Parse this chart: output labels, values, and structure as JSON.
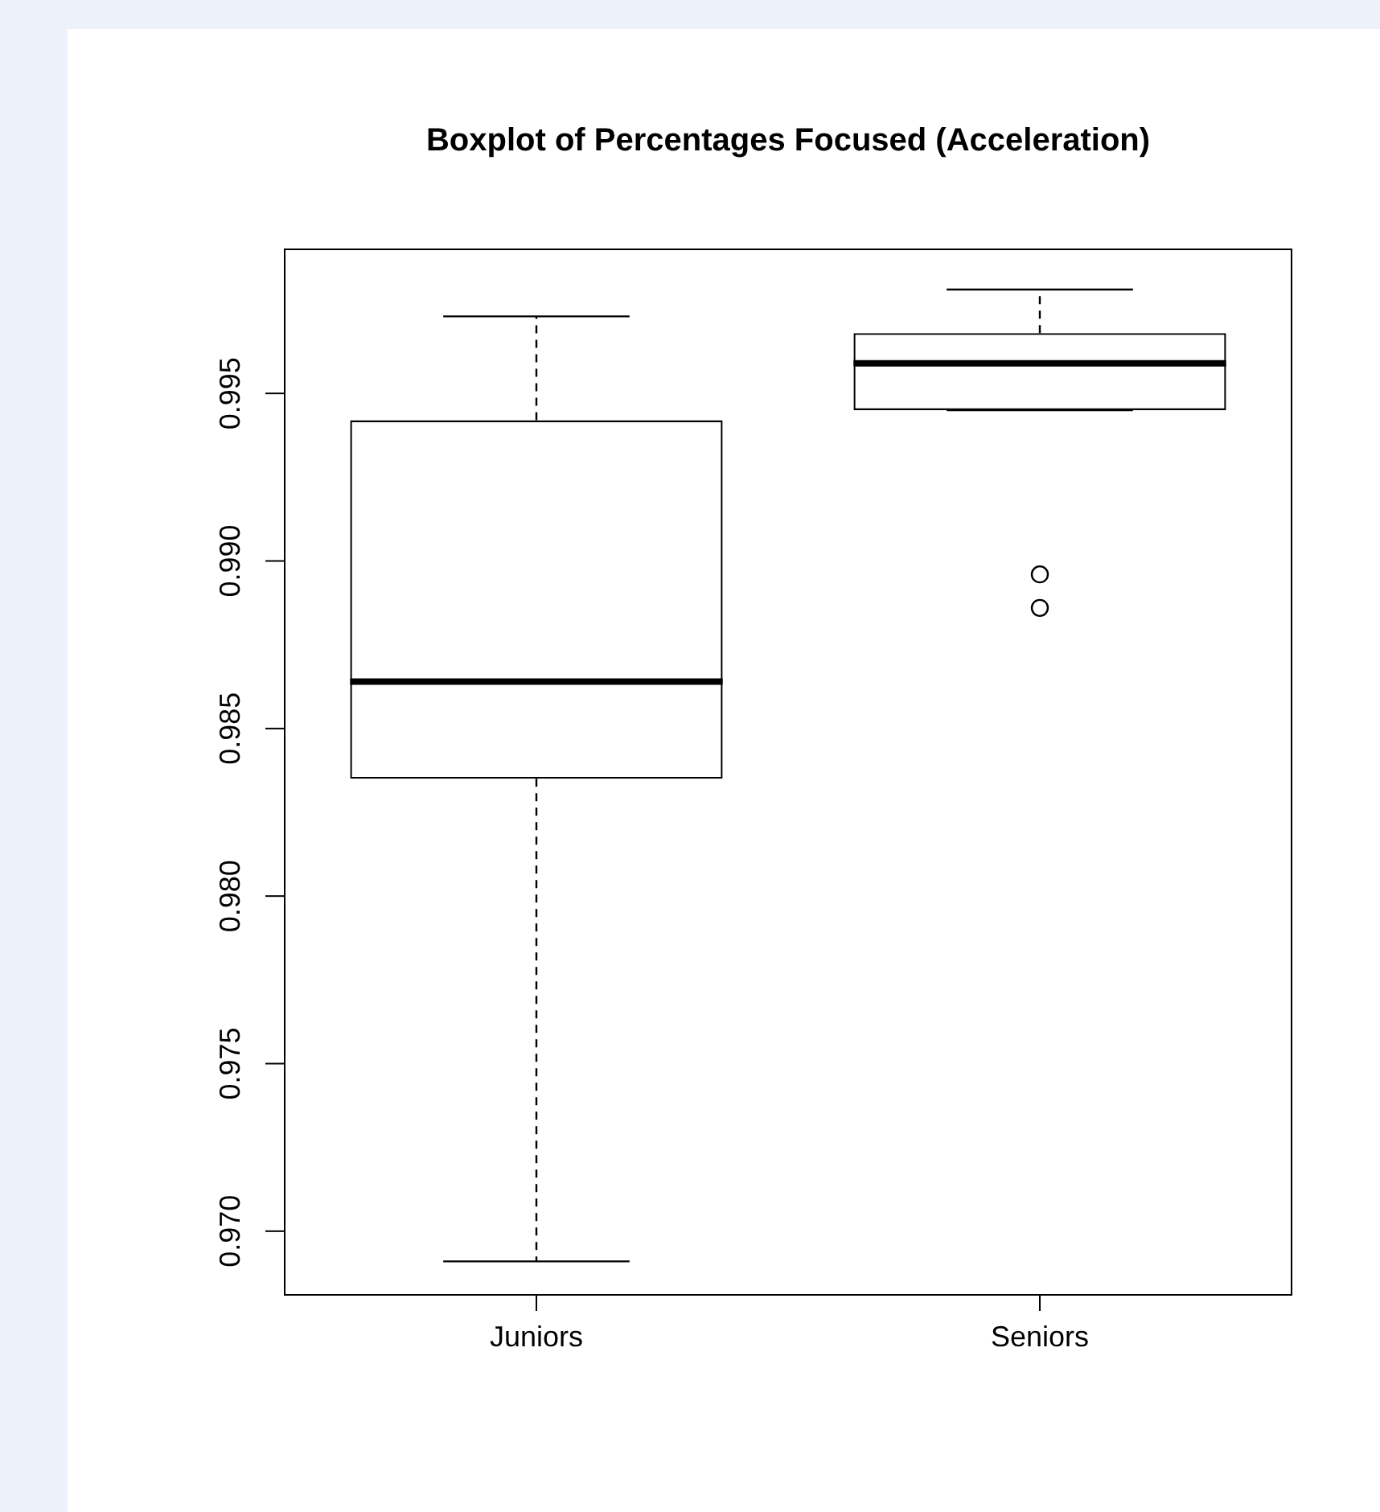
{
  "chart_data": {
    "type": "box",
    "title": "Boxplot of Percentages Focused (Acceleration)",
    "categories": [
      "Juniors",
      "Seniors"
    ],
    "boxes": [
      {
        "low": 0.9691,
        "q1": 0.9835,
        "median": 0.9864,
        "q3": 0.9942,
        "high": 0.9973
      },
      {
        "low": 0.9945,
        "q1": 0.9945,
        "median": 0.9959,
        "q3": 0.9968,
        "high": 0.9981,
        "outliers": [
          0.9896,
          0.9886
        ]
      }
    ],
    "color": "#000000",
    "ylim": [
      0.9681,
      0.9993
    ],
    "yticks": [
      {
        "value": 0.97,
        "label": "0.970"
      },
      {
        "value": 0.975,
        "label": "0.975"
      },
      {
        "value": 0.98,
        "label": "0.980"
      },
      {
        "value": 0.985,
        "label": "0.985"
      },
      {
        "value": 0.99,
        "label": "0.990"
      },
      {
        "value": 0.995,
        "label": "0.995"
      }
    ],
    "grid": false,
    "legend": false
  }
}
